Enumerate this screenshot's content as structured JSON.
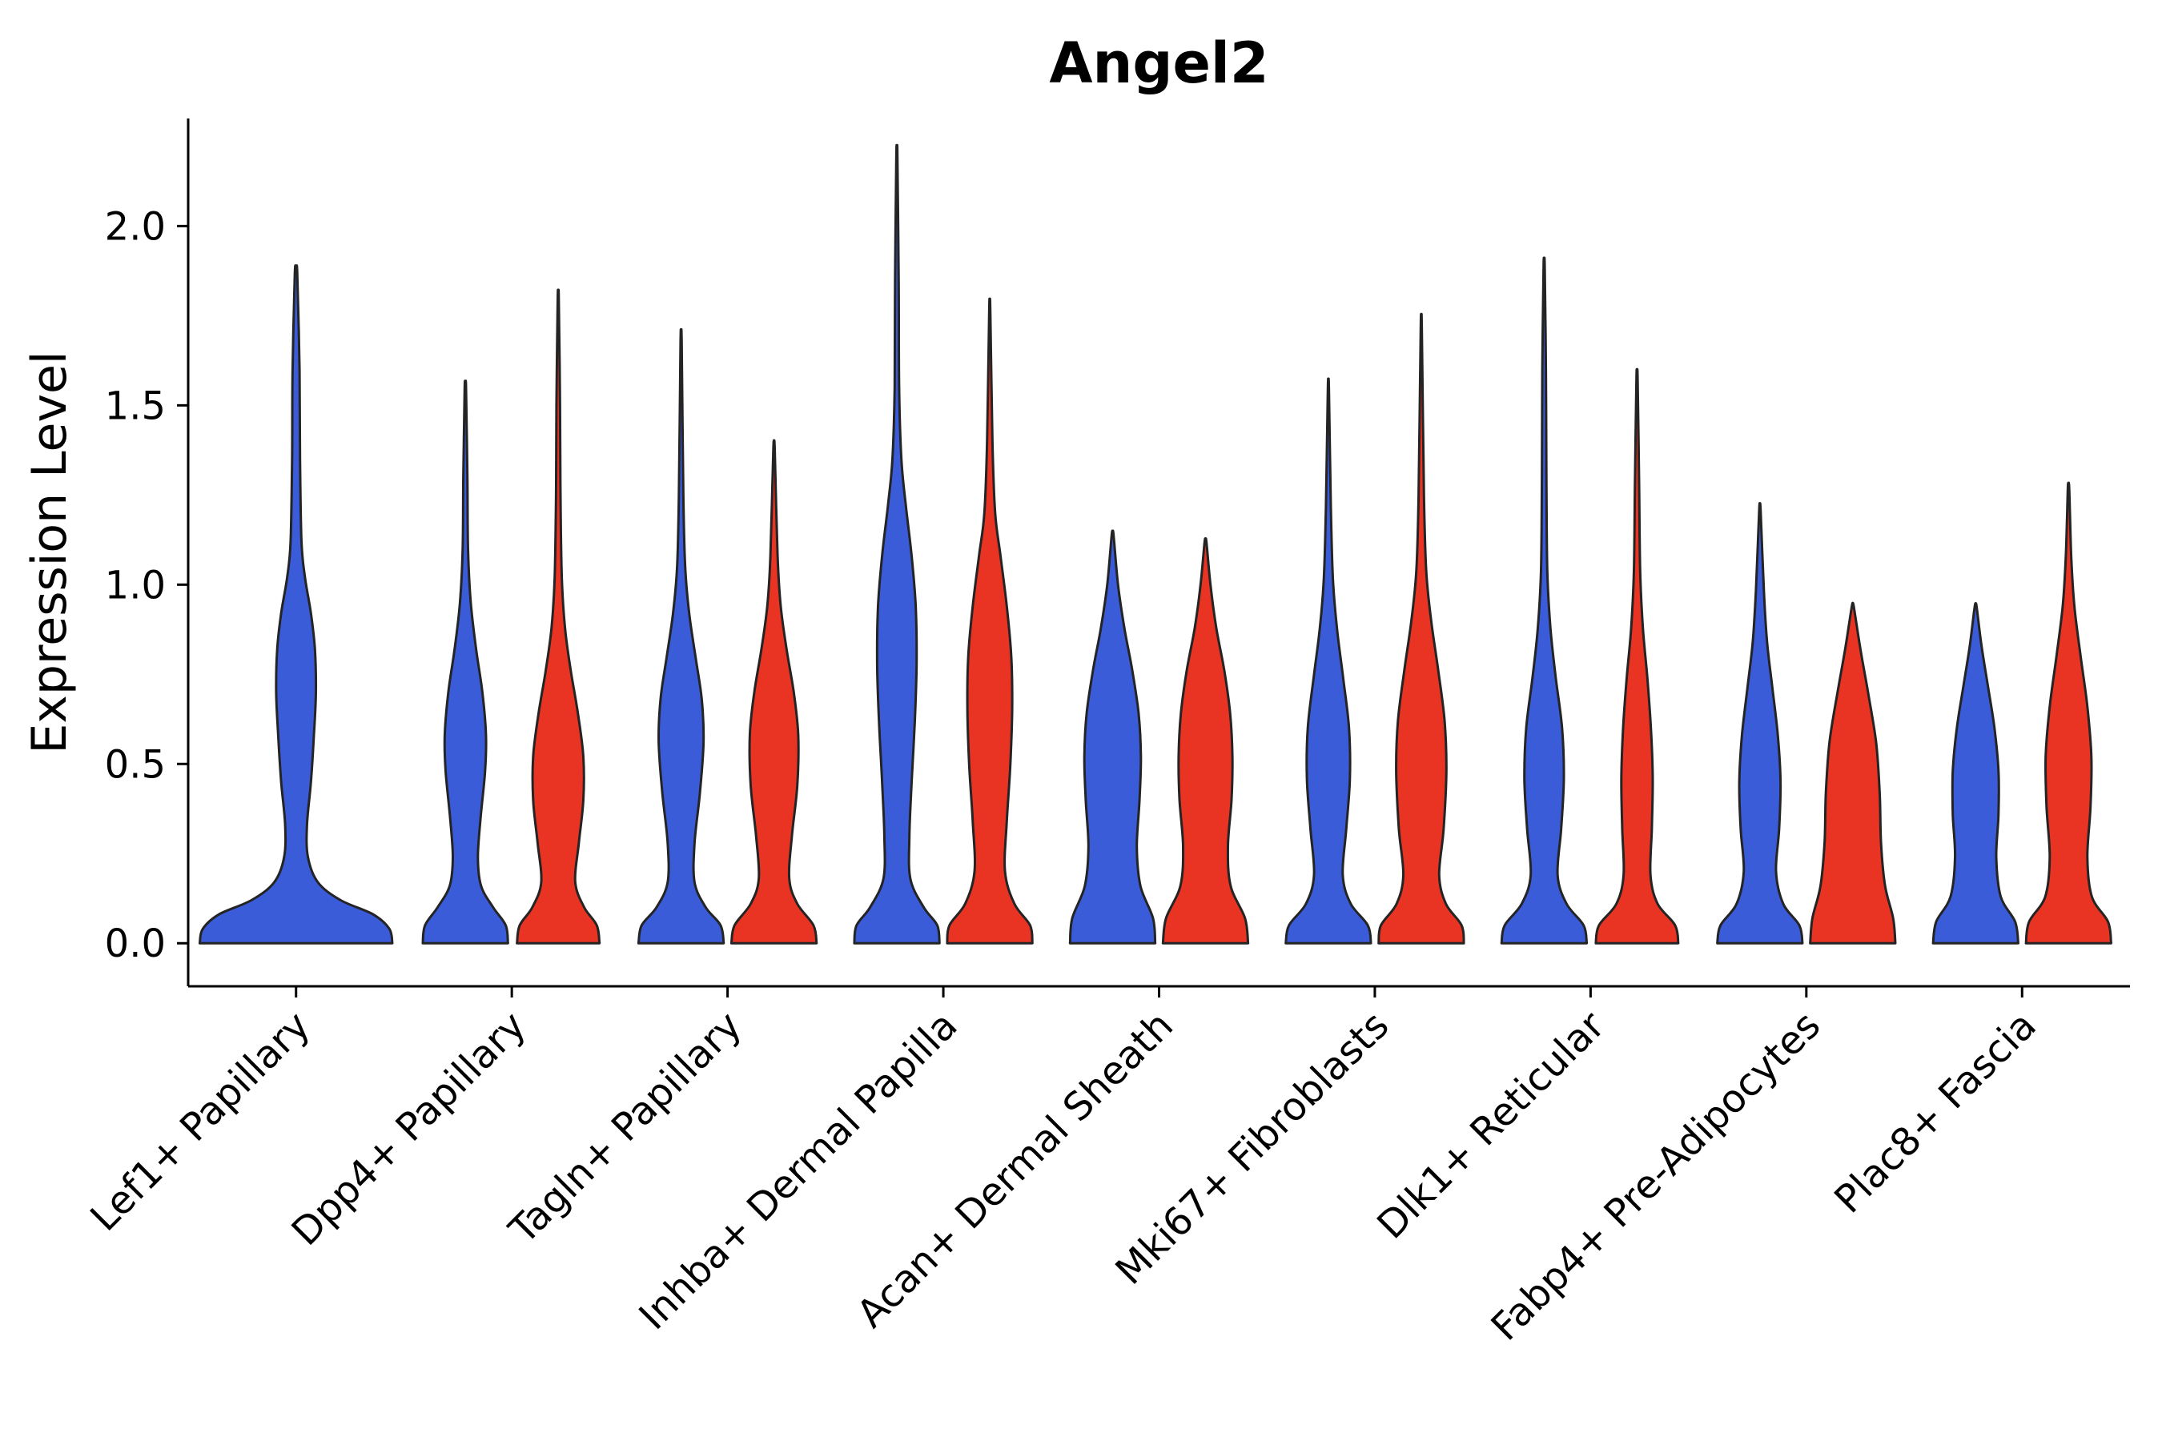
{
  "chart_data": {
    "type": "violin",
    "title": "Angel2",
    "ylabel": "Expression Level",
    "xlabel": "",
    "ylim": [
      -0.12,
      2.3
    ],
    "grid": false,
    "legend": "none",
    "yticks": [
      {
        "value": 0.0,
        "label": "0.0"
      },
      {
        "value": 0.5,
        "label": "0.5"
      },
      {
        "value": 1.0,
        "label": "1.0"
      },
      {
        "value": 1.5,
        "label": "1.5"
      },
      {
        "value": 2.0,
        "label": "2.0"
      }
    ],
    "categories": [
      "Lef1+ Papillary",
      "Dpp4+ Papillary",
      "Tagln+ Papillary",
      "Inhba+ Dermal Papilla",
      "Acan+ Dermal Sheath",
      "Mki67+ Fibroblasts",
      "Dlk1+ Reticular",
      "Fabp4+ Pre-Adipocytes",
      "Plac8+ Fascia"
    ],
    "colors": {
      "blue": "#3b5cd9",
      "red": "#e93424",
      "edge": "#242424"
    },
    "violins": [
      {
        "category": 0,
        "side": "center",
        "color": "blue",
        "max": 1.87,
        "profile": [
          [
            0,
            0.97
          ],
          [
            0.04,
            0.94
          ],
          [
            0.08,
            0.78
          ],
          [
            0.12,
            0.45
          ],
          [
            0.17,
            0.22
          ],
          [
            0.24,
            0.12
          ],
          [
            0.33,
            0.11
          ],
          [
            0.45,
            0.15
          ],
          [
            0.58,
            0.18
          ],
          [
            0.7,
            0.2
          ],
          [
            0.82,
            0.19
          ],
          [
            0.92,
            0.15
          ],
          [
            1.02,
            0.09
          ],
          [
            1.12,
            0.055
          ],
          [
            1.35,
            0.04
          ],
          [
            1.6,
            0.035
          ],
          [
            1.87,
            0.012
          ]
        ]
      },
      {
        "category": 1,
        "side": "left",
        "color": "blue",
        "max": 1.55,
        "profile": [
          [
            0,
            0.95
          ],
          [
            0.05,
            0.9
          ],
          [
            0.1,
            0.62
          ],
          [
            0.16,
            0.35
          ],
          [
            0.24,
            0.28
          ],
          [
            0.35,
            0.34
          ],
          [
            0.48,
            0.44
          ],
          [
            0.58,
            0.46
          ],
          [
            0.7,
            0.38
          ],
          [
            0.82,
            0.24
          ],
          [
            0.95,
            0.12
          ],
          [
            1.1,
            0.06
          ],
          [
            1.3,
            0.045
          ],
          [
            1.55,
            0.015
          ]
        ]
      },
      {
        "category": 1,
        "side": "right",
        "color": "red",
        "max": 1.8,
        "profile": [
          [
            0,
            0.92
          ],
          [
            0.05,
            0.86
          ],
          [
            0.1,
            0.58
          ],
          [
            0.17,
            0.38
          ],
          [
            0.28,
            0.46
          ],
          [
            0.4,
            0.56
          ],
          [
            0.52,
            0.56
          ],
          [
            0.64,
            0.44
          ],
          [
            0.76,
            0.28
          ],
          [
            0.88,
            0.15
          ],
          [
            1.02,
            0.08
          ],
          [
            1.25,
            0.05
          ],
          [
            1.5,
            0.04
          ],
          [
            1.8,
            0.012
          ]
        ]
      },
      {
        "category": 2,
        "side": "left",
        "color": "blue",
        "max": 1.68,
        "profile": [
          [
            0,
            0.95
          ],
          [
            0.05,
            0.88
          ],
          [
            0.1,
            0.55
          ],
          [
            0.17,
            0.3
          ],
          [
            0.28,
            0.3
          ],
          [
            0.42,
            0.42
          ],
          [
            0.56,
            0.5
          ],
          [
            0.68,
            0.46
          ],
          [
            0.8,
            0.32
          ],
          [
            0.92,
            0.18
          ],
          [
            1.05,
            0.09
          ],
          [
            1.25,
            0.05
          ],
          [
            1.68,
            0.012
          ]
        ]
      },
      {
        "category": 2,
        "side": "right",
        "color": "red",
        "max": 1.38,
        "profile": [
          [
            0,
            0.95
          ],
          [
            0.05,
            0.88
          ],
          [
            0.11,
            0.52
          ],
          [
            0.18,
            0.34
          ],
          [
            0.3,
            0.4
          ],
          [
            0.44,
            0.52
          ],
          [
            0.58,
            0.54
          ],
          [
            0.7,
            0.44
          ],
          [
            0.82,
            0.28
          ],
          [
            0.94,
            0.15
          ],
          [
            1.08,
            0.08
          ],
          [
            1.38,
            0.015
          ]
        ]
      },
      {
        "category": 3,
        "side": "left",
        "color": "blue",
        "max": 2.2,
        "profile": [
          [
            0,
            0.95
          ],
          [
            0.05,
            0.9
          ],
          [
            0.1,
            0.6
          ],
          [
            0.18,
            0.3
          ],
          [
            0.3,
            0.28
          ],
          [
            0.45,
            0.33
          ],
          [
            0.62,
            0.4
          ],
          [
            0.78,
            0.44
          ],
          [
            0.94,
            0.42
          ],
          [
            1.08,
            0.33
          ],
          [
            1.22,
            0.2
          ],
          [
            1.35,
            0.1
          ],
          [
            1.55,
            0.05
          ],
          [
            1.85,
            0.04
          ],
          [
            2.2,
            0.012
          ]
        ]
      },
      {
        "category": 3,
        "side": "right",
        "color": "red",
        "max": 1.77,
        "profile": [
          [
            0,
            0.95
          ],
          [
            0.05,
            0.9
          ],
          [
            0.11,
            0.55
          ],
          [
            0.2,
            0.34
          ],
          [
            0.34,
            0.38
          ],
          [
            0.5,
            0.46
          ],
          [
            0.66,
            0.5
          ],
          [
            0.8,
            0.48
          ],
          [
            0.94,
            0.38
          ],
          [
            1.08,
            0.24
          ],
          [
            1.2,
            0.12
          ],
          [
            1.4,
            0.06
          ],
          [
            1.77,
            0.012
          ]
        ]
      },
      {
        "category": 4,
        "side": "left",
        "color": "blue",
        "max": 1.14,
        "profile": [
          [
            0,
            0.95
          ],
          [
            0.07,
            0.9
          ],
          [
            0.16,
            0.62
          ],
          [
            0.27,
            0.54
          ],
          [
            0.4,
            0.6
          ],
          [
            0.52,
            0.63
          ],
          [
            0.64,
            0.58
          ],
          [
            0.76,
            0.44
          ],
          [
            0.88,
            0.26
          ],
          [
            1.0,
            0.12
          ],
          [
            1.14,
            0.02
          ]
        ]
      },
      {
        "category": 4,
        "side": "right",
        "color": "red",
        "max": 1.12,
        "profile": [
          [
            0,
            0.95
          ],
          [
            0.07,
            0.88
          ],
          [
            0.16,
            0.56
          ],
          [
            0.27,
            0.5
          ],
          [
            0.4,
            0.58
          ],
          [
            0.52,
            0.6
          ],
          [
            0.64,
            0.55
          ],
          [
            0.76,
            0.42
          ],
          [
            0.88,
            0.24
          ],
          [
            1.0,
            0.11
          ],
          [
            1.12,
            0.02
          ]
        ]
      },
      {
        "category": 5,
        "side": "left",
        "color": "blue",
        "max": 1.55,
        "profile": [
          [
            0,
            0.95
          ],
          [
            0.05,
            0.88
          ],
          [
            0.11,
            0.5
          ],
          [
            0.19,
            0.32
          ],
          [
            0.32,
            0.4
          ],
          [
            0.46,
            0.48
          ],
          [
            0.6,
            0.46
          ],
          [
            0.74,
            0.33
          ],
          [
            0.88,
            0.19
          ],
          [
            1.02,
            0.1
          ],
          [
            1.22,
            0.055
          ],
          [
            1.55,
            0.012
          ]
        ]
      },
      {
        "category": 5,
        "side": "right",
        "color": "red",
        "max": 1.72,
        "profile": [
          [
            0,
            0.95
          ],
          [
            0.05,
            0.9
          ],
          [
            0.11,
            0.55
          ],
          [
            0.19,
            0.4
          ],
          [
            0.32,
            0.5
          ],
          [
            0.48,
            0.56
          ],
          [
            0.62,
            0.52
          ],
          [
            0.76,
            0.38
          ],
          [
            0.9,
            0.22
          ],
          [
            1.04,
            0.11
          ],
          [
            1.25,
            0.06
          ],
          [
            1.72,
            0.012
          ]
        ]
      },
      {
        "category": 6,
        "side": "left",
        "color": "blue",
        "max": 1.89,
        "profile": [
          [
            0,
            0.95
          ],
          [
            0.05,
            0.88
          ],
          [
            0.11,
            0.5
          ],
          [
            0.19,
            0.3
          ],
          [
            0.32,
            0.38
          ],
          [
            0.46,
            0.44
          ],
          [
            0.6,
            0.4
          ],
          [
            0.74,
            0.26
          ],
          [
            0.88,
            0.14
          ],
          [
            1.04,
            0.07
          ],
          [
            1.3,
            0.05
          ],
          [
            1.6,
            0.04
          ],
          [
            1.89,
            0.012
          ]
        ]
      },
      {
        "category": 6,
        "side": "right",
        "color": "red",
        "max": 1.58,
        "profile": [
          [
            0,
            0.92
          ],
          [
            0.05,
            0.85
          ],
          [
            0.11,
            0.46
          ],
          [
            0.19,
            0.3
          ],
          [
            0.32,
            0.33
          ],
          [
            0.46,
            0.35
          ],
          [
            0.6,
            0.31
          ],
          [
            0.74,
            0.23
          ],
          [
            0.88,
            0.13
          ],
          [
            1.04,
            0.07
          ],
          [
            1.3,
            0.045
          ],
          [
            1.58,
            0.012
          ]
        ]
      },
      {
        "category": 7,
        "side": "left",
        "color": "blue",
        "max": 1.21,
        "profile": [
          [
            0,
            0.95
          ],
          [
            0.05,
            0.88
          ],
          [
            0.11,
            0.52
          ],
          [
            0.2,
            0.36
          ],
          [
            0.32,
            0.43
          ],
          [
            0.45,
            0.46
          ],
          [
            0.58,
            0.4
          ],
          [
            0.72,
            0.27
          ],
          [
            0.84,
            0.16
          ],
          [
            0.98,
            0.09
          ],
          [
            1.21,
            0.015
          ]
        ]
      },
      {
        "category": 7,
        "side": "right",
        "color": "red",
        "max": 0.94,
        "profile": [
          [
            0,
            0.95
          ],
          [
            0.07,
            0.9
          ],
          [
            0.16,
            0.72
          ],
          [
            0.28,
            0.63
          ],
          [
            0.42,
            0.6
          ],
          [
            0.56,
            0.52
          ],
          [
            0.7,
            0.34
          ],
          [
            0.82,
            0.17
          ],
          [
            0.94,
            0.02
          ]
        ]
      },
      {
        "category": 8,
        "side": "left",
        "color": "blue",
        "max": 0.94,
        "profile": [
          [
            0,
            0.95
          ],
          [
            0.06,
            0.88
          ],
          [
            0.13,
            0.56
          ],
          [
            0.24,
            0.46
          ],
          [
            0.36,
            0.51
          ],
          [
            0.48,
            0.51
          ],
          [
            0.6,
            0.42
          ],
          [
            0.72,
            0.27
          ],
          [
            0.83,
            0.13
          ],
          [
            0.94,
            0.02
          ]
        ]
      },
      {
        "category": 8,
        "side": "right",
        "color": "red",
        "max": 1.27,
        "profile": [
          [
            0,
            0.95
          ],
          [
            0.06,
            0.88
          ],
          [
            0.13,
            0.52
          ],
          [
            0.24,
            0.42
          ],
          [
            0.38,
            0.49
          ],
          [
            0.52,
            0.51
          ],
          [
            0.66,
            0.42
          ],
          [
            0.8,
            0.27
          ],
          [
            0.94,
            0.13
          ],
          [
            1.08,
            0.06
          ],
          [
            1.27,
            0.015
          ]
        ]
      }
    ]
  }
}
